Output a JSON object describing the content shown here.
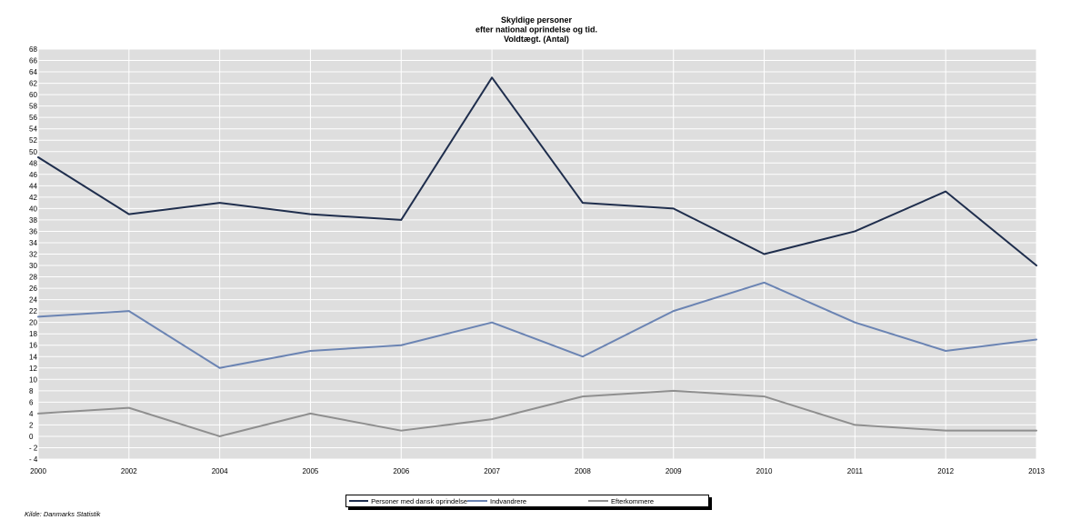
{
  "title_lines": [
    "Skyldige personer",
    "efter national oprindelse og tid.",
    "Voldtægt. (Antal)"
  ],
  "source": "Kilde: Danmarks Statistik",
  "colors": {
    "plot_background": "#dedede",
    "grid": "#ffffff"
  },
  "chart_data": {
    "type": "line",
    "title": "Skyldige personer efter national oprindelse og tid. Voldtægt. (Antal)",
    "categories": [
      "2000",
      "2002",
      "2004",
      "2005",
      "2006",
      "2007",
      "2008",
      "2009",
      "2010",
      "2011",
      "2012",
      "2013"
    ],
    "series": [
      {
        "name": "Personer med dansk oprindelse",
        "color": "#1f2e4d",
        "values": [
          49,
          39,
          41,
          39,
          38,
          63,
          41,
          40,
          32,
          36,
          43,
          30
        ]
      },
      {
        "name": "Indvandrere",
        "color": "#6b84b3",
        "values": [
          21,
          22,
          12,
          15,
          16,
          20,
          14,
          22,
          27,
          20,
          15,
          17
        ]
      },
      {
        "name": "Efterkommere",
        "color": "#8f8f8f",
        "values": [
          4,
          5,
          0,
          4,
          1,
          3,
          7,
          8,
          7,
          2,
          1,
          1
        ]
      }
    ],
    "ylim": [
      -4,
      68
    ],
    "ytick_step": 2,
    "ytick_labels": [
      "- 4",
      "- 2",
      "0",
      "2",
      "4",
      "6",
      "8",
      "10",
      "12",
      "14",
      "16",
      "18",
      "20",
      "22",
      "24",
      "26",
      "28",
      "30",
      "32",
      "34",
      "36",
      "38",
      "40",
      "42",
      "44",
      "46",
      "48",
      "50",
      "52",
      "54",
      "56",
      "58",
      "60",
      "62",
      "64",
      "66",
      "68"
    ],
    "grid": true,
    "legend_position": "bottom-center"
  }
}
